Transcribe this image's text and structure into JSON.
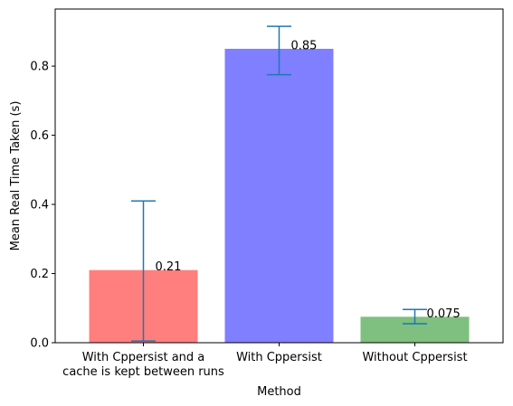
{
  "chart_data": {
    "type": "bar",
    "title": "",
    "xlabel": "Method",
    "ylabel": "Mean Real Time Taken (s)",
    "ylim": [
      0,
      0.965
    ],
    "yticks": [
      0.0,
      0.2,
      0.4,
      0.6,
      0.8
    ],
    "ytick_labels": [
      "0.0",
      "0.2",
      "0.4",
      "0.6",
      "0.8"
    ],
    "grid": false,
    "legend": "none",
    "categories": [
      [
        "With Cppersist and a",
        "cache is kept between runs"
      ],
      [
        "With Cppersist"
      ],
      [
        "Without Cppersist"
      ]
    ],
    "values": [
      0.21,
      0.85,
      0.075
    ],
    "value_labels": [
      "0.21",
      "0.85",
      "0.075"
    ],
    "error_low": [
      0.005,
      0.775,
      0.055
    ],
    "error_high": [
      0.41,
      0.915,
      0.096
    ],
    "bar_colors": [
      "#ff7f7f",
      "#7f7fff",
      "#7fbf7f"
    ],
    "error_color": "#1f77b4"
  }
}
